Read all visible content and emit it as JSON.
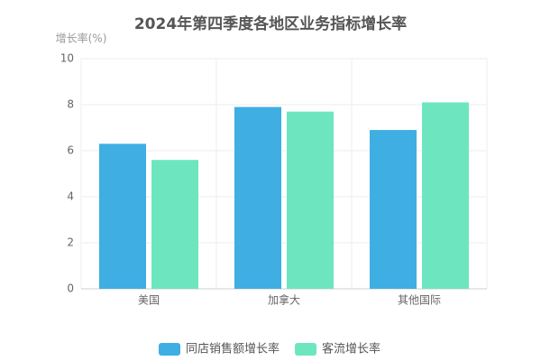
{
  "chart_data": {
    "type": "bar",
    "title": "2024年第四季度各地区业务指标增长率",
    "y_label": "增长率(%)",
    "categories": [
      "美国",
      "加拿大",
      "其他国际"
    ],
    "series": [
      {
        "name": "同店销售额增长率",
        "color": "#3eaee3",
        "values": [
          6.3,
          7.9,
          6.9
        ]
      },
      {
        "name": "客流增长率",
        "color": "#6de6c0",
        "values": [
          5.6,
          7.7,
          8.1
        ]
      }
    ],
    "ylim": [
      0,
      10
    ],
    "yticks": [
      0,
      2,
      4,
      6,
      8,
      10
    ],
    "grid": true,
    "legend": "bottom"
  }
}
